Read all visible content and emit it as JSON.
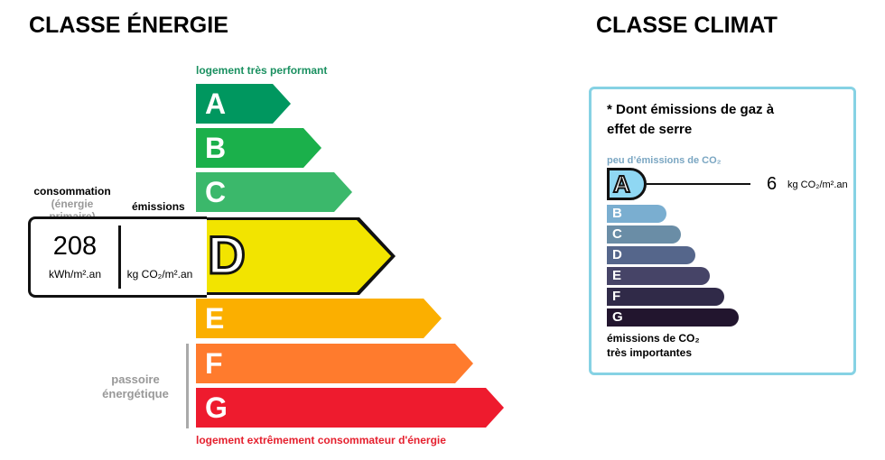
{
  "energy": {
    "title": "CLASSE ÉNERGIE",
    "top_label": "logement très performant",
    "bottom_label": "logement extrêmement consommateur d'énergie",
    "consumption_label": "consommation",
    "consumption_sub": "(énergie primaire)",
    "emissions_label": "émissions",
    "value": "208",
    "value_unit": "kWh/m².an",
    "emissions_unit": "kg CO₂/m².an",
    "current_class": "D",
    "passoire_label": "passoire\nénergétique",
    "classes": [
      {
        "letter": "A",
        "color": "#00975f"
      },
      {
        "letter": "B",
        "color": "#1bb04b"
      },
      {
        "letter": "C",
        "color": "#3bb86b"
      },
      {
        "letter": "D",
        "color": "#f2e400"
      },
      {
        "letter": "E",
        "color": "#fbaf00"
      },
      {
        "letter": "F",
        "color": "#ff7b2d"
      },
      {
        "letter": "G",
        "color": "#ee1b2e"
      }
    ]
  },
  "climate": {
    "title": "CLASSE CLIMAT",
    "note": "* Dont émissions de gaz à effet de serre",
    "top_label": "peu d’émissions de CO₂",
    "bottom_label": "émissions de CO₂ très importantes",
    "value": "6",
    "unit": "kg CO₂/m².an",
    "current_class": "A",
    "classes": [
      {
        "letter": "A",
        "color": "#8fd7f3"
      },
      {
        "letter": "B",
        "color": "#7aaed0"
      },
      {
        "letter": "C",
        "color": "#6a8da6"
      },
      {
        "letter": "D",
        "color": "#55668b"
      },
      {
        "letter": "E",
        "color": "#464467"
      },
      {
        "letter": "F",
        "color": "#302a48"
      },
      {
        "letter": "G",
        "color": "#22152e"
      }
    ]
  }
}
